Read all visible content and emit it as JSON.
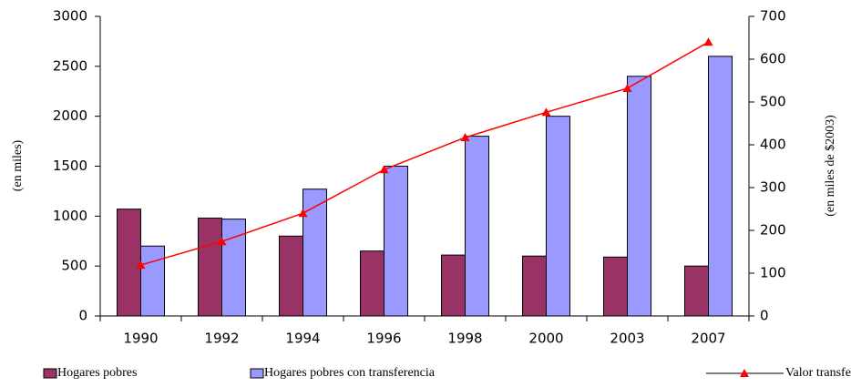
{
  "chart_data": {
    "type": "bar",
    "categories": [
      "1990",
      "1992",
      "1994",
      "1996",
      "1998",
      "2000",
      "2003",
      "2007"
    ],
    "series": [
      {
        "name": "Hogares pobres",
        "type": "bar",
        "color": "#993366",
        "values": [
          1070,
          980,
          800,
          650,
          610,
          600,
          590,
          500
        ]
      },
      {
        "name": "Hogares pobres con transferencia",
        "type": "bar",
        "color": "#9999ff",
        "values": [
          700,
          970,
          1270,
          1500,
          1800,
          2000,
          2400,
          2600
        ]
      },
      {
        "name": "Valor transferencia virtual mensual",
        "type": "line",
        "axis": "y2",
        "color": "#ff0000",
        "values": [
          119,
          174,
          240,
          342,
          417,
          476,
          532,
          640
        ]
      }
    ],
    "ylabel": "(en miles)",
    "y2label": "(en miles de $2003)",
    "ylim": [
      0,
      3000
    ],
    "yticks": [
      0,
      500,
      1000,
      1500,
      2000,
      2500,
      3000
    ],
    "y2lim": [
      0,
      700
    ],
    "y2ticks": [
      0,
      100,
      200,
      300,
      400,
      500,
      600,
      700
    ],
    "grid": false,
    "legend": "bottom"
  }
}
